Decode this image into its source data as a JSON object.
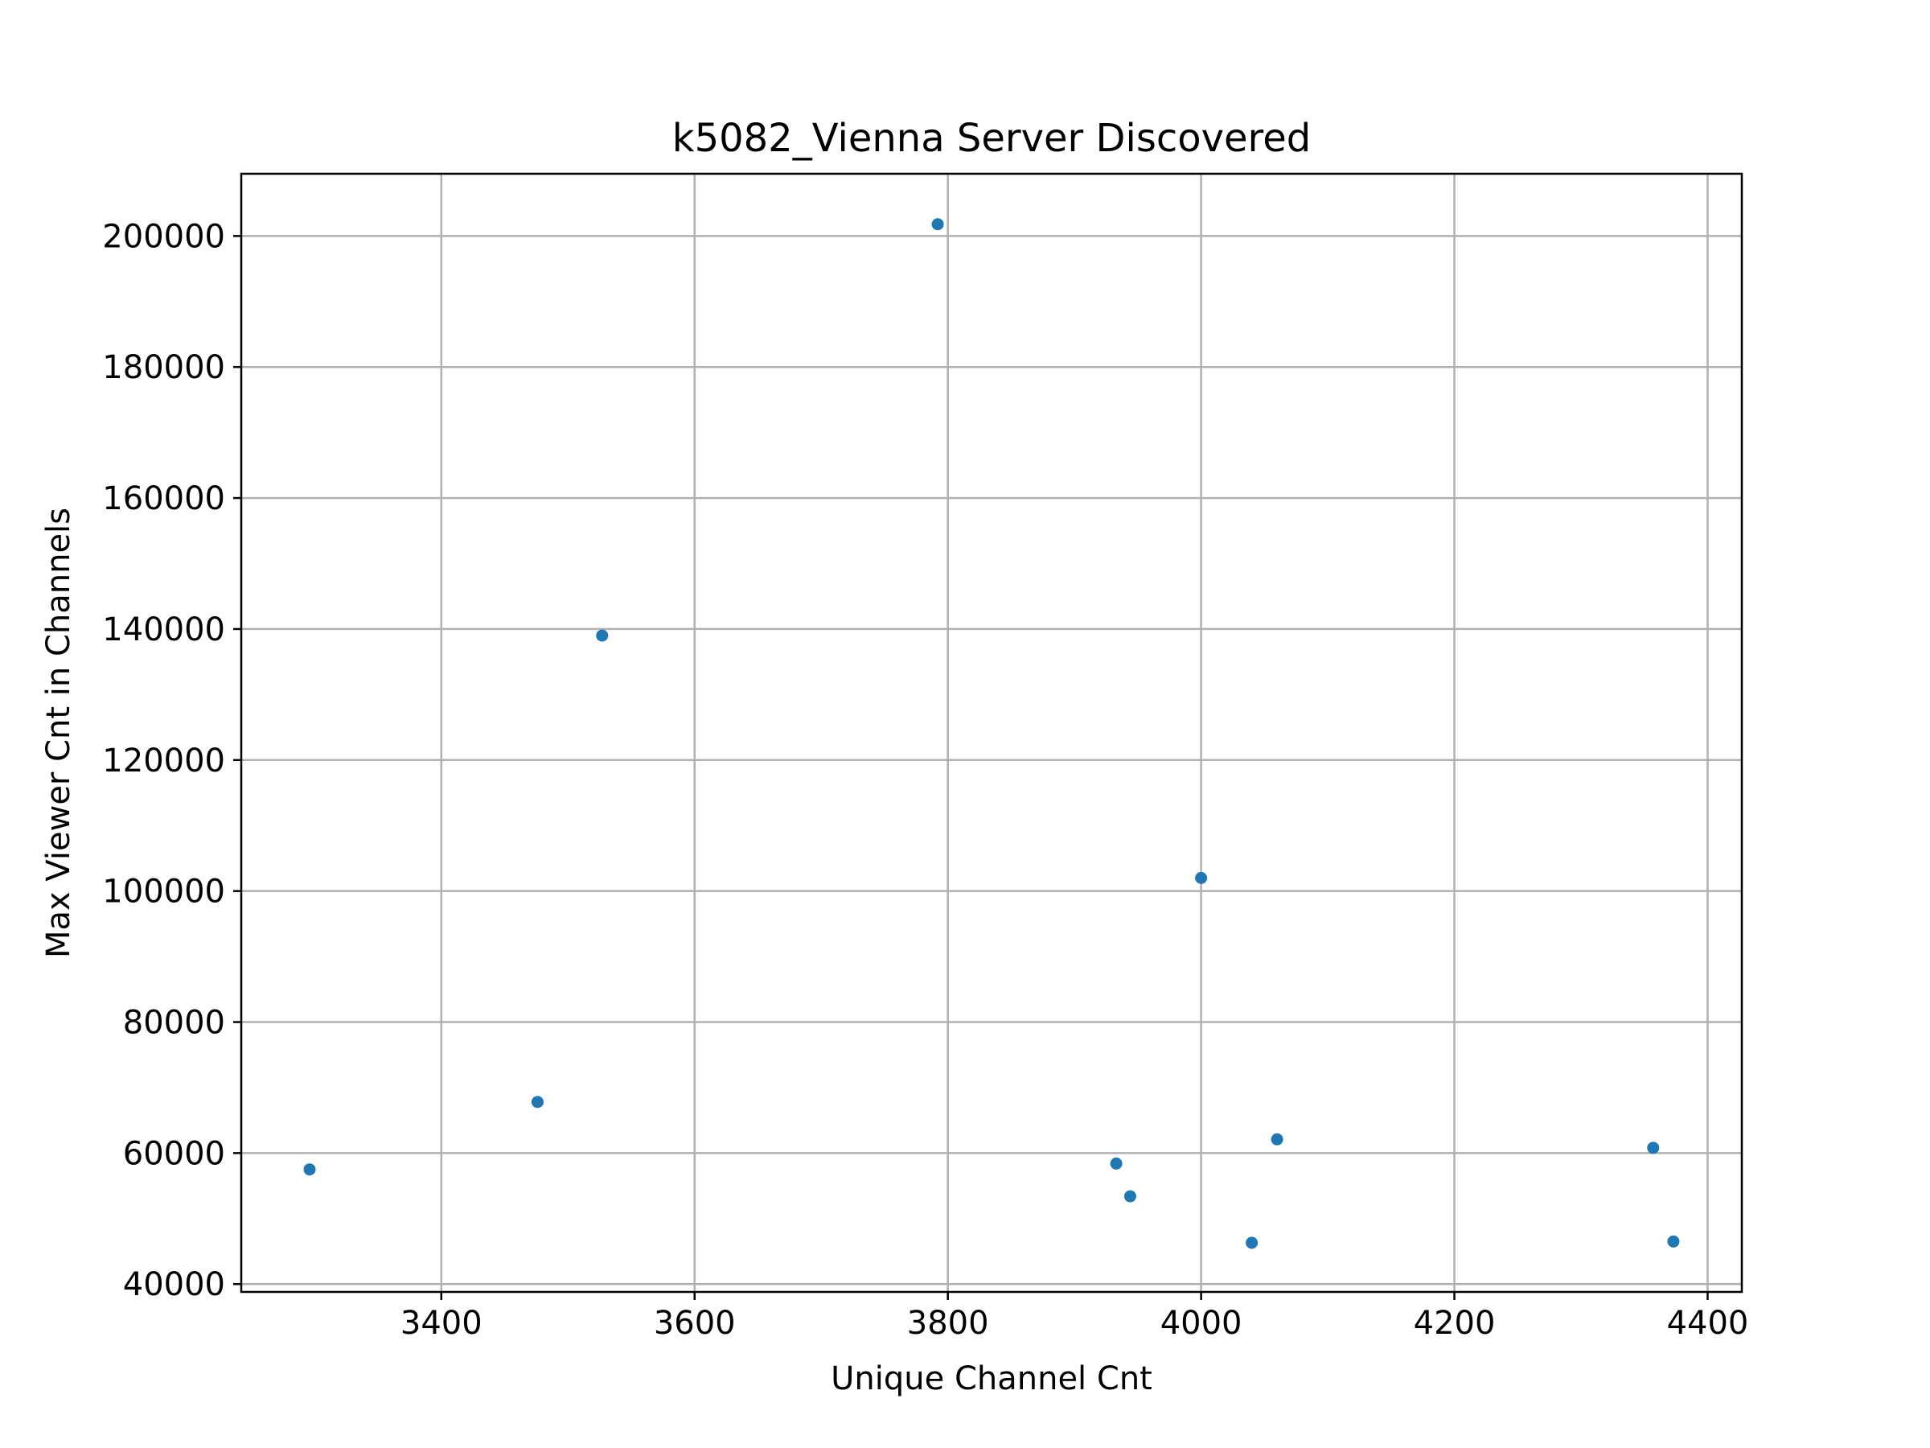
{
  "chart_data": {
    "type": "scatter",
    "title": "k5082_Vienna Server Discovered",
    "xlabel": "Unique Channel Cnt",
    "ylabel": "Max Viewer Cnt in Channels",
    "xlim": [
      3242,
      4427
    ],
    "ylim": [
      38800,
      209500
    ],
    "xticks": [
      3400,
      3600,
      3800,
      4000,
      4200,
      4400
    ],
    "yticks": [
      40000,
      60000,
      80000,
      100000,
      120000,
      140000,
      160000,
      180000,
      200000
    ],
    "grid": true,
    "marker_color": "#1f77b4",
    "points": [
      {
        "x": 3296,
        "y": 57500
      },
      {
        "x": 3476,
        "y": 67800
      },
      {
        "x": 3527,
        "y": 139000
      },
      {
        "x": 3792,
        "y": 201800
      },
      {
        "x": 3933,
        "y": 58400
      },
      {
        "x": 3944,
        "y": 53400
      },
      {
        "x": 4000,
        "y": 102000
      },
      {
        "x": 4040,
        "y": 46300
      },
      {
        "x": 4060,
        "y": 62100
      },
      {
        "x": 4357,
        "y": 60800
      },
      {
        "x": 4373,
        "y": 46500
      }
    ]
  }
}
